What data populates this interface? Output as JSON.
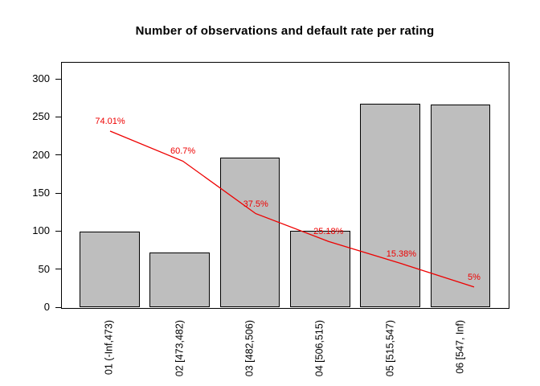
{
  "title": "Number of observations and default rate per rating",
  "chart_data": {
    "type": "bar",
    "title": "Number of observations and default rate per rating",
    "categories": [
      "01 (-Inf,473)",
      "02 [473,482)",
      "03 [482,506)",
      "04 [506,515)",
      "05 [515,547)",
      "06 [547, Inf)"
    ],
    "series": [
      {
        "name": "number-of-observations",
        "type": "bar",
        "values": [
          99,
          72,
          196,
          100,
          267,
          266
        ],
        "fill_color": "#bebebe",
        "border_color": "#000000"
      },
      {
        "name": "default-rate",
        "type": "line",
        "values_pct": [
          74.01,
          60.7,
          37.5,
          25.18,
          15.38,
          5
        ],
        "point_labels": [
          "74.01%",
          "60.7%",
          "37.5%",
          "25.18%",
          "15.38%",
          "5%"
        ],
        "color": "#ee0000"
      }
    ],
    "xlabel": "",
    "ylabel": "",
    "yticks": [
      0,
      50,
      100,
      150,
      200,
      250,
      300
    ],
    "ylim": [
      0,
      322
    ],
    "grid": false,
    "legend": false,
    "background": "#ffffff"
  }
}
